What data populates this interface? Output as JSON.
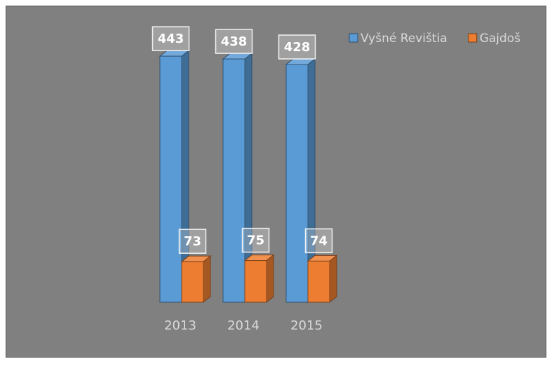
{
  "chart_data": {
    "type": "bar3d",
    "categories": [
      "2013",
      "2014",
      "2015"
    ],
    "series": [
      {
        "name": "Vyšné Revištia",
        "color": "#5b9bd5",
        "values": [
          443,
          438,
          428
        ]
      },
      {
        "name": "Gajdoš",
        "color": "#ed7d31",
        "values": [
          73,
          75,
          74
        ]
      }
    ],
    "ylim": [
      0,
      500
    ],
    "legend": "top-right"
  }
}
